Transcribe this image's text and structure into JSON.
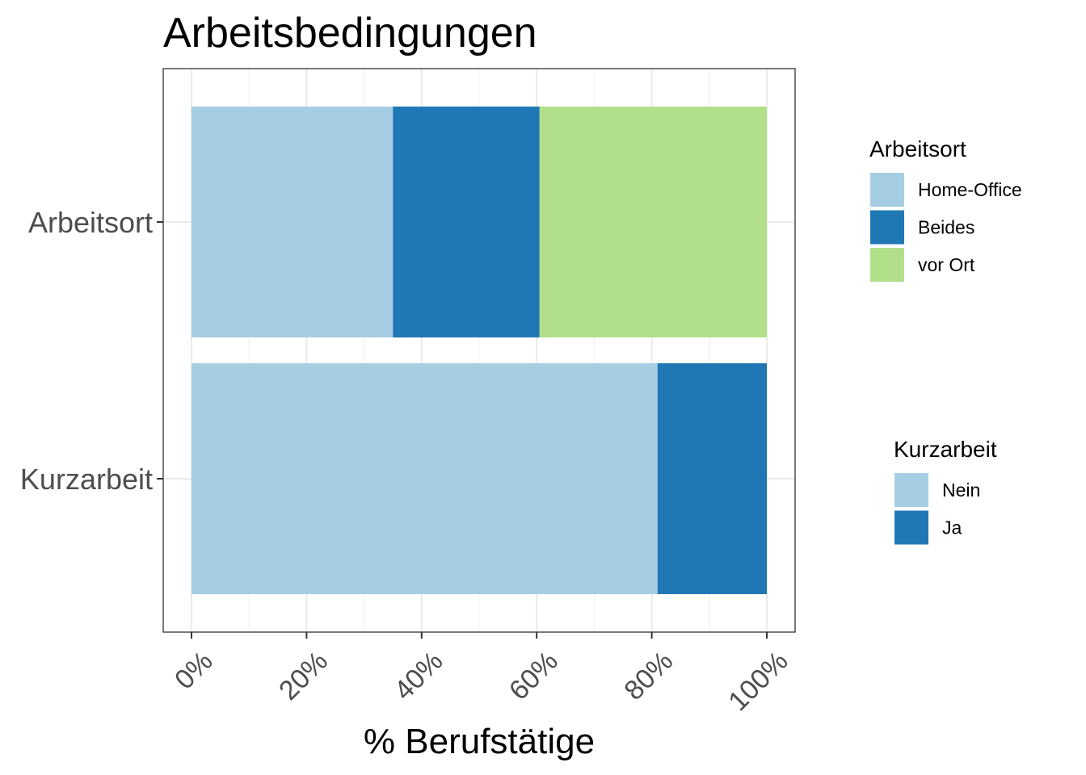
{
  "chart_data": {
    "type": "bar",
    "orientation": "horizontal",
    "stacked": true,
    "title": "Arbeitsbedingungen",
    "xlabel": "% Berufstätige",
    "ylabel": "",
    "xlim": [
      0,
      100
    ],
    "x_ticks": [
      "0%",
      "20%",
      "40%",
      "60%",
      "80%",
      "100%"
    ],
    "x_tick_values": [
      0,
      20,
      40,
      60,
      80,
      100
    ],
    "grid": true,
    "legend_position": "right",
    "categories": [
      "Arbeitsort",
      "Kurzarbeit"
    ],
    "bars": [
      {
        "category": "Arbeitsort",
        "segments": [
          {
            "name": "Home-Office",
            "value": 35,
            "color": "#a6cee3"
          },
          {
            "name": "Beides",
            "value": 25.5,
            "color": "#1f78b4"
          },
          {
            "name": "vor Ort",
            "value": 39.5,
            "color": "#b2df8a"
          }
        ]
      },
      {
        "category": "Kurzarbeit",
        "segments": [
          {
            "name": "Nein",
            "value": 81,
            "color": "#a6cee3"
          },
          {
            "name": "Ja",
            "value": 19,
            "color": "#1f78b4"
          }
        ]
      }
    ],
    "legends": [
      {
        "title": "Arbeitsort",
        "entries": [
          {
            "label": "Home-Office",
            "color": "#a6cee3"
          },
          {
            "label": "Beides",
            "color": "#1f78b4"
          },
          {
            "label": "vor Ort",
            "color": "#b2df8a"
          }
        ]
      },
      {
        "title": "Kurzarbeit",
        "entries": [
          {
            "label": "Nein",
            "color": "#a6cee3"
          },
          {
            "label": "Ja",
            "color": "#1f78b4"
          }
        ]
      }
    ]
  }
}
